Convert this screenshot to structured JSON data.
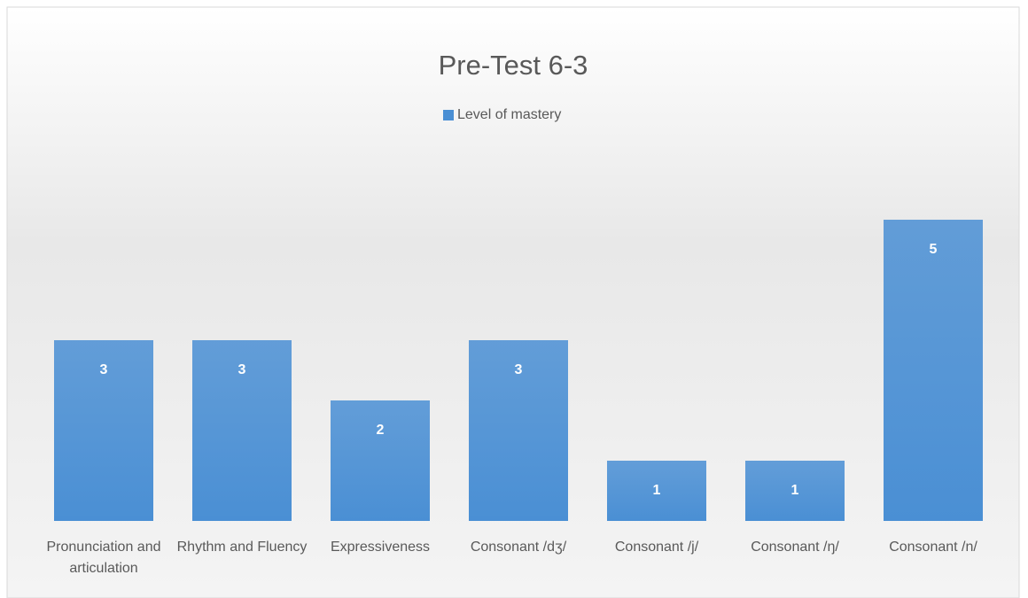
{
  "chart_data": {
    "type": "bar",
    "title": "Pre-Test 6-3",
    "categories": [
      "Pronunciation and articulation",
      "Rhythm and Fluency",
      "Expressiveness",
      "Consonant /dʒ/",
      "Consonant /j/",
      "Consonant /ŋ/",
      "Consonant /n/"
    ],
    "series": [
      {
        "name": "Level of mastery",
        "color": "#4a8fd4",
        "values": [
          3,
          3,
          2,
          3,
          1,
          1,
          5
        ]
      }
    ],
    "ylim": [
      0,
      6
    ],
    "grid": false,
    "legend": "top"
  }
}
